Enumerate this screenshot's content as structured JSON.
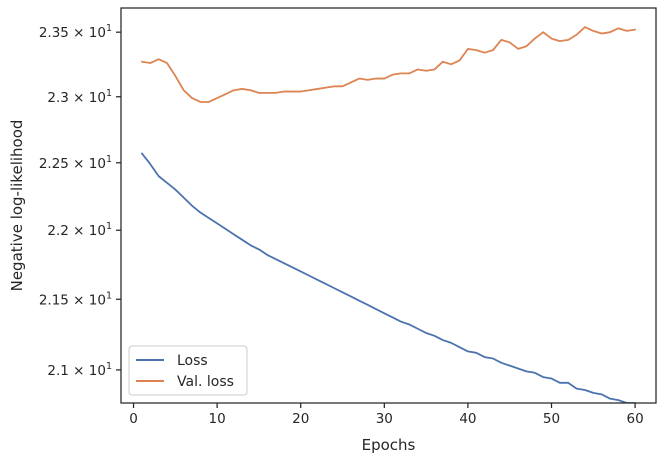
{
  "chart_data": {
    "type": "line",
    "xlabel": "Epochs",
    "ylabel": "Negative log-likelihood",
    "xlim": [
      -1.5,
      62.5
    ],
    "ylim": [
      20.77,
      23.69
    ],
    "yscale": "log",
    "grid": false,
    "legend_position": "lower-left",
    "x_ticks": [
      0,
      10,
      20,
      30,
      40,
      50,
      60
    ],
    "x_tick_labels": [
      "0",
      "10",
      "20",
      "30",
      "40",
      "50",
      "60"
    ],
    "y_ticks": [
      21.0,
      21.5,
      22.0,
      22.5,
      23.0,
      23.5
    ],
    "y_tick_labels": [
      {
        "mantissa": "2.1",
        "times": "×",
        "base": "10",
        "exponent": "1"
      },
      {
        "mantissa": "2.15",
        "times": "×",
        "base": "10",
        "exponent": "1"
      },
      {
        "mantissa": "2.2",
        "times": "×",
        "base": "10",
        "exponent": "1"
      },
      {
        "mantissa": "2.25",
        "times": "×",
        "base": "10",
        "exponent": "1"
      },
      {
        "mantissa": "2.3",
        "times": "×",
        "base": "10",
        "exponent": "1"
      },
      {
        "mantissa": "2.35",
        "times": "×",
        "base": "10",
        "exponent": "1"
      }
    ],
    "x": [
      1,
      2,
      3,
      4,
      5,
      6,
      7,
      8,
      9,
      10,
      11,
      12,
      13,
      14,
      15,
      16,
      17,
      18,
      19,
      20,
      21,
      22,
      23,
      24,
      25,
      26,
      27,
      28,
      29,
      30,
      31,
      32,
      33,
      34,
      35,
      36,
      37,
      38,
      39,
      40,
      41,
      42,
      43,
      44,
      45,
      46,
      47,
      48,
      49,
      50,
      51,
      52,
      53,
      54,
      55,
      56,
      57,
      58,
      59,
      60
    ],
    "series": [
      {
        "name": "Loss",
        "color": "#4c72b0",
        "values": [
          22.57,
          22.49,
          22.4,
          22.35,
          22.3,
          22.24,
          22.18,
          22.13,
          22.09,
          22.05,
          22.01,
          21.97,
          21.93,
          21.89,
          21.86,
          21.82,
          21.79,
          21.76,
          21.73,
          21.7,
          21.67,
          21.64,
          21.61,
          21.58,
          21.55,
          21.52,
          21.49,
          21.46,
          21.43,
          21.4,
          21.37,
          21.34,
          21.32,
          21.29,
          21.26,
          21.24,
          21.21,
          21.19,
          21.16,
          21.13,
          21.12,
          21.09,
          21.08,
          21.05,
          21.03,
          21.01,
          20.99,
          20.98,
          20.95,
          20.94,
          20.91,
          20.91,
          20.87,
          20.86,
          20.84,
          20.83,
          20.8,
          20.79,
          20.77,
          20.77
        ]
      },
      {
        "name": "Val. loss",
        "color": "#dd8452",
        "values": [
          23.27,
          23.26,
          23.29,
          23.26,
          23.16,
          23.05,
          22.99,
          22.96,
          22.96,
          22.99,
          23.02,
          23.05,
          23.06,
          23.05,
          23.03,
          23.03,
          23.03,
          23.04,
          23.04,
          23.04,
          23.05,
          23.06,
          23.07,
          23.08,
          23.08,
          23.11,
          23.14,
          23.13,
          23.14,
          23.14,
          23.17,
          23.18,
          23.18,
          23.21,
          23.2,
          23.21,
          23.27,
          23.25,
          23.28,
          23.37,
          23.36,
          23.34,
          23.36,
          23.44,
          23.42,
          23.37,
          23.39,
          23.45,
          23.5,
          23.45,
          23.43,
          23.44,
          23.48,
          23.54,
          23.51,
          23.49,
          23.5,
          23.53,
          23.51,
          23.52
        ]
      }
    ]
  }
}
